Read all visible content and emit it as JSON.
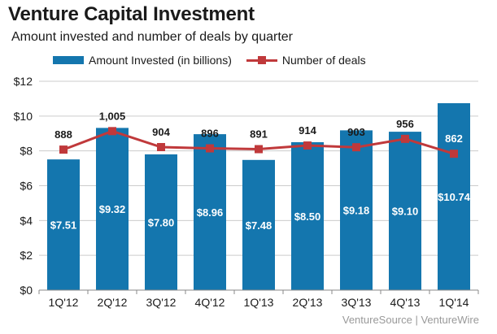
{
  "title": "Venture Capital Investment",
  "subtitle": "Amount invested and number of deals by quarter",
  "source": "VentureSource  |  VentureWire",
  "legend": {
    "bars": "Amount Invested (in billions)",
    "line": "Number of deals"
  },
  "colors": {
    "bar": "#1476ae",
    "line": "#c0393b",
    "grid": "#cccccc",
    "bar_label": "#ffffff",
    "text": "#1a1a1a"
  },
  "chart_data": {
    "type": "bar",
    "title": "Venture Capital Investment",
    "subtitle": "Amount invested and number of deals by quarter",
    "xlabel": "",
    "ylabel": "",
    "ylim": [
      0,
      12
    ],
    "yticks": [
      0,
      2,
      4,
      6,
      8,
      10,
      12
    ],
    "ytick_labels": [
      "$0",
      "$2",
      "$4",
      "$6",
      "$8",
      "$10",
      "$12"
    ],
    "grid": true,
    "legend_position": "top-left",
    "categories": [
      "1Q'12",
      "2Q'12",
      "3Q'12",
      "4Q'12",
      "1Q'13",
      "2Q'13",
      "3Q'13",
      "4Q'13",
      "1Q'14"
    ],
    "series": [
      {
        "name": "Amount Invested (in billions)",
        "type": "bar",
        "values": [
          7.51,
          9.32,
          7.8,
          8.96,
          7.48,
          8.5,
          9.18,
          9.1,
          10.74
        ],
        "labels": [
          "$7.51",
          "$9.32",
          "$7.80",
          "$8.96",
          "$7.48",
          "$8.50",
          "$9.18",
          "$9.10",
          "$10.74"
        ]
      },
      {
        "name": "Number of deals",
        "type": "line",
        "values": [
          888,
          1005,
          904,
          896,
          891,
          914,
          903,
          956,
          862
        ],
        "labels": [
          "888",
          "1,005",
          "904",
          "896",
          "891",
          "914",
          "903",
          "956",
          "862"
        ]
      }
    ]
  }
}
